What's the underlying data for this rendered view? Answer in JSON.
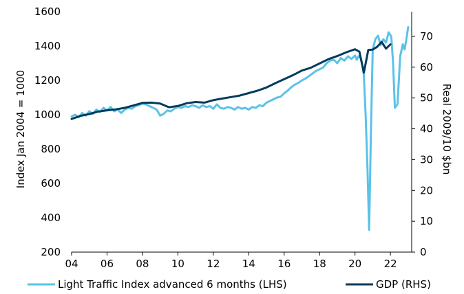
{
  "chart_data": {
    "type": "line",
    "x_axis": {
      "ticks": [
        2004,
        2006,
        2008,
        2010,
        2012,
        2014,
        2016,
        2018,
        2020,
        2022
      ],
      "tick_labels": [
        "04",
        "06",
        "08",
        "10",
        "12",
        "14",
        "16",
        "18",
        "20",
        "22"
      ],
      "range": [
        2004,
        2023.2
      ]
    },
    "y_left": {
      "label": "Index Jan 2004 = 1000",
      "range": [
        200,
        1600
      ],
      "ticks": [
        200,
        400,
        600,
        800,
        1000,
        1200,
        1400,
        1600
      ],
      "tick_labels": [
        "200",
        "400",
        "600",
        "800",
        "1000",
        "1200",
        "1400",
        "1600"
      ]
    },
    "y_right": {
      "label": "Real 2009/10 $bn",
      "range": [
        0,
        78
      ],
      "ticks": [
        0,
        10,
        20,
        30,
        40,
        50,
        60,
        70
      ],
      "tick_labels": [
        "0",
        "10",
        "20",
        "30",
        "40",
        "50",
        "60",
        "70"
      ]
    },
    "legend": {
      "position": "bottom"
    },
    "grid": false,
    "series": [
      {
        "name": "Light Traffic Index advanced 6 months (LHS)",
        "axis": "left",
        "color": "#5bc2e7",
        "points": [
          [
            2004.0,
            990
          ],
          [
            2004.2,
            1000
          ],
          [
            2004.4,
            985
          ],
          [
            2004.6,
            1010
          ],
          [
            2004.8,
            995
          ],
          [
            2005.0,
            1020
          ],
          [
            2005.2,
            1005
          ],
          [
            2005.4,
            1030
          ],
          [
            2005.6,
            1015
          ],
          [
            2005.8,
            1040
          ],
          [
            2006.0,
            1025
          ],
          [
            2006.2,
            1045
          ],
          [
            2006.4,
            1020
          ],
          [
            2006.6,
            1030
          ],
          [
            2006.8,
            1010
          ],
          [
            2007.0,
            1030
          ],
          [
            2007.2,
            1040
          ],
          [
            2007.4,
            1035
          ],
          [
            2007.6,
            1050
          ],
          [
            2007.8,
            1055
          ],
          [
            2008.0,
            1065
          ],
          [
            2008.2,
            1060
          ],
          [
            2008.4,
            1050
          ],
          [
            2008.6,
            1040
          ],
          [
            2008.8,
            1030
          ],
          [
            2009.0,
            995
          ],
          [
            2009.2,
            1005
          ],
          [
            2009.4,
            1025
          ],
          [
            2009.6,
            1020
          ],
          [
            2009.8,
            1035
          ],
          [
            2010.0,
            1045
          ],
          [
            2010.2,
            1040
          ],
          [
            2010.4,
            1050
          ],
          [
            2010.6,
            1045
          ],
          [
            2010.8,
            1055
          ],
          [
            2011.0,
            1050
          ],
          [
            2011.2,
            1040
          ],
          [
            2011.4,
            1055
          ],
          [
            2011.6,
            1045
          ],
          [
            2011.8,
            1050
          ],
          [
            2012.0,
            1035
          ],
          [
            2012.2,
            1060
          ],
          [
            2012.4,
            1040
          ],
          [
            2012.6,
            1035
          ],
          [
            2012.8,
            1045
          ],
          [
            2013.0,
            1040
          ],
          [
            2013.2,
            1030
          ],
          [
            2013.4,
            1045
          ],
          [
            2013.6,
            1035
          ],
          [
            2013.8,
            1040
          ],
          [
            2014.0,
            1030
          ],
          [
            2014.2,
            1045
          ],
          [
            2014.4,
            1040
          ],
          [
            2014.6,
            1055
          ],
          [
            2014.8,
            1050
          ],
          [
            2015.0,
            1070
          ],
          [
            2015.2,
            1080
          ],
          [
            2015.4,
            1090
          ],
          [
            2015.6,
            1100
          ],
          [
            2015.8,
            1105
          ],
          [
            2016.0,
            1125
          ],
          [
            2016.2,
            1140
          ],
          [
            2016.4,
            1160
          ],
          [
            2016.6,
            1175
          ],
          [
            2016.8,
            1185
          ],
          [
            2017.0,
            1200
          ],
          [
            2017.2,
            1210
          ],
          [
            2017.4,
            1225
          ],
          [
            2017.6,
            1240
          ],
          [
            2017.8,
            1255
          ],
          [
            2018.0,
            1265
          ],
          [
            2018.2,
            1275
          ],
          [
            2018.4,
            1300
          ],
          [
            2018.6,
            1315
          ],
          [
            2018.8,
            1320
          ],
          [
            2019.0,
            1300
          ],
          [
            2019.2,
            1330
          ],
          [
            2019.4,
            1315
          ],
          [
            2019.6,
            1340
          ],
          [
            2019.8,
            1325
          ],
          [
            2020.0,
            1345
          ],
          [
            2020.1,
            1320
          ],
          [
            2020.2,
            1340
          ],
          [
            2020.3,
            1335
          ],
          [
            2020.4,
            1300
          ],
          [
            2020.5,
            1230
          ],
          [
            2020.6,
            1000
          ],
          [
            2020.7,
            700
          ],
          [
            2020.8,
            330
          ],
          [
            2020.9,
            900
          ],
          [
            2021.0,
            1380
          ],
          [
            2021.15,
            1440
          ],
          [
            2021.3,
            1460
          ],
          [
            2021.45,
            1405
          ],
          [
            2021.6,
            1440
          ],
          [
            2021.75,
            1420
          ],
          [
            2021.9,
            1480
          ],
          [
            2022.05,
            1455
          ],
          [
            2022.15,
            1300
          ],
          [
            2022.25,
            1040
          ],
          [
            2022.4,
            1060
          ],
          [
            2022.55,
            1340
          ],
          [
            2022.7,
            1410
          ],
          [
            2022.8,
            1380
          ],
          [
            2022.9,
            1440
          ],
          [
            2023.0,
            1510
          ]
        ]
      },
      {
        "name": "GDP (RHS)",
        "axis": "right",
        "color": "#003b5c",
        "points": [
          [
            2004.0,
            43.2
          ],
          [
            2004.5,
            44.2
          ],
          [
            2005.0,
            44.8
          ],
          [
            2005.5,
            45.6
          ],
          [
            2006.0,
            46.0
          ],
          [
            2006.5,
            46.3
          ],
          [
            2007.0,
            46.8
          ],
          [
            2007.5,
            47.6
          ],
          [
            2008.0,
            48.4
          ],
          [
            2008.5,
            48.5
          ],
          [
            2009.0,
            48.2
          ],
          [
            2009.5,
            47.0
          ],
          [
            2010.0,
            47.4
          ],
          [
            2010.5,
            48.3
          ],
          [
            2011.0,
            48.7
          ],
          [
            2011.5,
            48.5
          ],
          [
            2012.0,
            49.3
          ],
          [
            2012.5,
            49.8
          ],
          [
            2013.0,
            50.3
          ],
          [
            2013.5,
            50.8
          ],
          [
            2014.0,
            51.6
          ],
          [
            2014.5,
            52.4
          ],
          [
            2015.0,
            53.4
          ],
          [
            2015.5,
            54.8
          ],
          [
            2016.0,
            56.1
          ],
          [
            2016.5,
            57.4
          ],
          [
            2017.0,
            58.9
          ],
          [
            2017.5,
            59.8
          ],
          [
            2018.0,
            61.2
          ],
          [
            2018.5,
            62.6
          ],
          [
            2019.0,
            63.6
          ],
          [
            2019.5,
            64.8
          ],
          [
            2020.0,
            65.8
          ],
          [
            2020.25,
            65.0
          ],
          [
            2020.5,
            58.2
          ],
          [
            2020.75,
            65.6
          ],
          [
            2021.0,
            65.7
          ],
          [
            2021.25,
            66.6
          ],
          [
            2021.5,
            68.2
          ],
          [
            2021.75,
            66.0
          ],
          [
            2022.0,
            67.4
          ]
        ]
      }
    ]
  }
}
